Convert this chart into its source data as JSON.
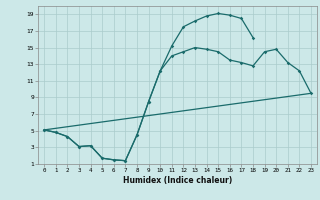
{
  "xlabel": "Humidex (Indice chaleur)",
  "bg_color": "#cce8e8",
  "grid_color": "#aacccc",
  "line_color": "#1a6b6b",
  "xlim": [
    -0.5,
    23.5
  ],
  "ylim": [
    1,
    20
  ],
  "xticks": [
    0,
    1,
    2,
    3,
    4,
    5,
    6,
    7,
    8,
    9,
    10,
    11,
    12,
    13,
    14,
    15,
    16,
    17,
    18,
    19,
    20,
    21,
    22,
    23
  ],
  "yticks": [
    1,
    3,
    5,
    7,
    9,
    11,
    13,
    15,
    17,
    19
  ],
  "line1_x": [
    0,
    1,
    2,
    3,
    4,
    5,
    6,
    7,
    8,
    9,
    10,
    11,
    12,
    13,
    14,
    15,
    16,
    17,
    18
  ],
  "line1_y": [
    5.1,
    4.8,
    4.3,
    3.1,
    3.2,
    1.7,
    1.5,
    1.4,
    4.5,
    8.5,
    12.2,
    15.2,
    17.5,
    18.2,
    18.8,
    19.1,
    18.9,
    18.5,
    16.2
  ],
  "line2_x": [
    0,
    23
  ],
  "line2_y": [
    5.1,
    9.5
  ],
  "line3_x": [
    0,
    1,
    2,
    3,
    4,
    5,
    6,
    7,
    8,
    9,
    10,
    11,
    12,
    13,
    14,
    15,
    16,
    17,
    18,
    19,
    20,
    21,
    22,
    23
  ],
  "line3_y": [
    5.1,
    4.8,
    4.3,
    3.1,
    3.2,
    1.7,
    1.5,
    1.4,
    4.5,
    8.5,
    12.2,
    14.0,
    14.5,
    15.0,
    14.8,
    14.5,
    13.5,
    13.2,
    12.8,
    14.5,
    14.8,
    13.2,
    12.2,
    9.5
  ]
}
